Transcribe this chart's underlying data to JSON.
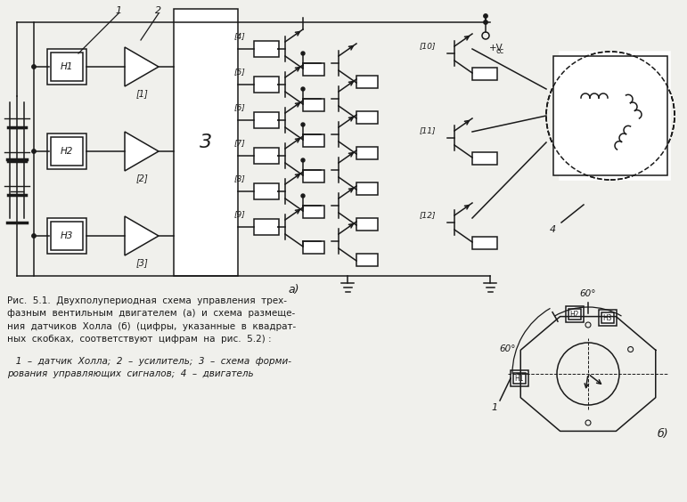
{
  "bg_color": "#f0f0ec",
  "line_color": "#1a1a1a",
  "text_color": "#1a1a1a",
  "fig_width": 7.71,
  "fig_height": 5.64,
  "label_a": "а)",
  "label_b": "б)",
  "label_vcc": "+V",
  "label_vcc2": "cc",
  "label_H1": "H1",
  "label_H2": "H2",
  "label_H3": "H3",
  "angle_60": "60°"
}
